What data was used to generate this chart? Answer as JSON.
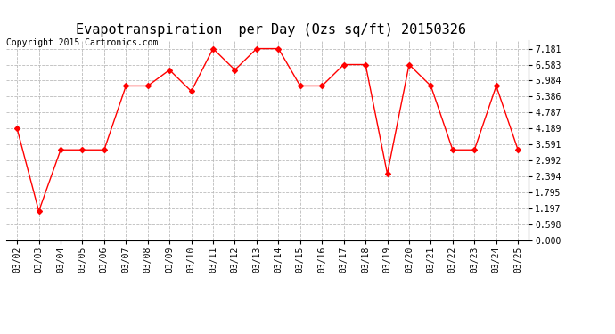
{
  "title": "Evapotranspiration  per Day (Ozs sq/ft) 20150326",
  "copyright": "Copyright 2015 Cartronics.com",
  "dates": [
    "03/02",
    "03/03",
    "03/04",
    "03/05",
    "03/06",
    "03/07",
    "03/08",
    "03/09",
    "03/10",
    "03/11",
    "03/12",
    "03/13",
    "03/14",
    "03/15",
    "03/16",
    "03/17",
    "03/18",
    "03/19",
    "03/20",
    "03/21",
    "03/22",
    "03/23",
    "03/24",
    "03/25"
  ],
  "values": [
    4.189,
    1.097,
    3.392,
    3.392,
    3.392,
    5.785,
    5.785,
    6.383,
    5.585,
    7.181,
    6.383,
    7.181,
    7.181,
    5.785,
    5.785,
    6.583,
    6.583,
    2.494,
    6.583,
    5.785,
    3.392,
    3.392,
    5.785,
    3.392
  ],
  "line_color": "#ff0000",
  "marker": "D",
  "marker_size": 3,
  "yticks": [
    0.0,
    0.598,
    1.197,
    1.795,
    2.394,
    2.992,
    3.591,
    4.189,
    4.787,
    5.386,
    5.984,
    6.583,
    7.181
  ],
  "ylim": [
    0.0,
    7.5
  ],
  "background_color": "#ffffff",
  "grid_color": "#bbbbbb",
  "legend_bg": "#cc0000",
  "legend_text_color": "#ffffff",
  "title_fontsize": 11,
  "tick_fontsize": 7,
  "copyright_fontsize": 7
}
